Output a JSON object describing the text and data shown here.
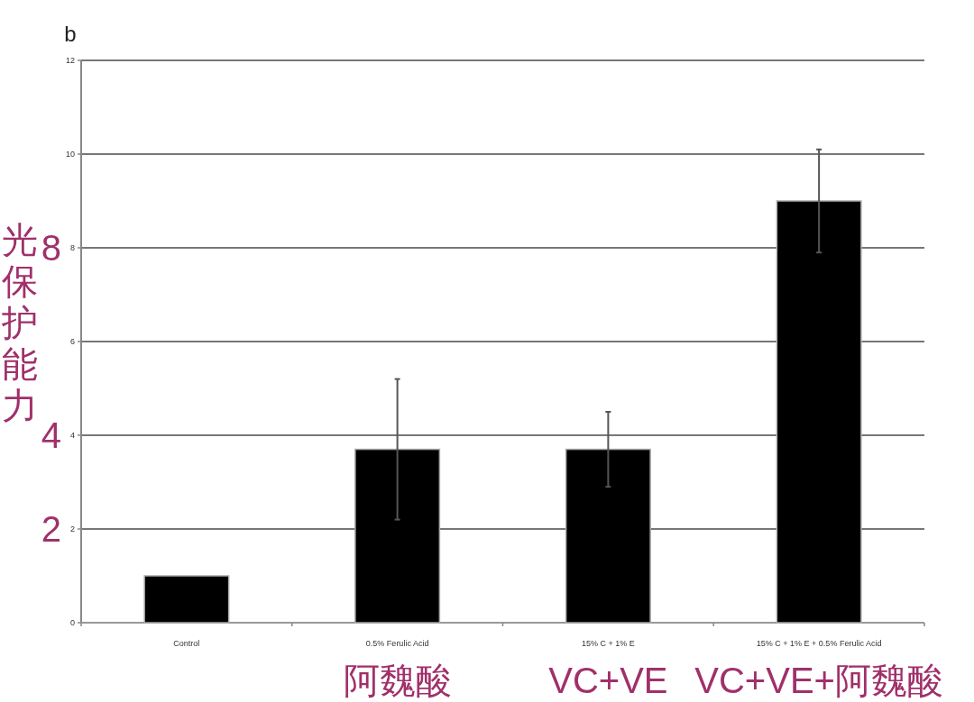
{
  "chart_data": {
    "type": "bar",
    "title": "b",
    "y2label": "光保护能力",
    "categories": [
      "Control",
      "0.5% Ferulic Acid\n阿魏酸",
      "15% C + 1% E\nVC+VE",
      "15% C + 1% E + 0.5% Ferulic Acid\nVC+VE+阿魏酸"
    ],
    "values": [
      1.0,
      3.7,
      3.7,
      9.0
    ],
    "errors": [
      null,
      1.5,
      0.8,
      1.1
    ],
    "color": "#000000",
    "ylim": [
      0,
      12
    ],
    "yticks": [
      0,
      2,
      4,
      6,
      8,
      10,
      12
    ],
    "y2lim": [
      0,
      12
    ],
    "y2ticks": [
      2,
      4,
      8
    ],
    "grid": "y"
  }
}
